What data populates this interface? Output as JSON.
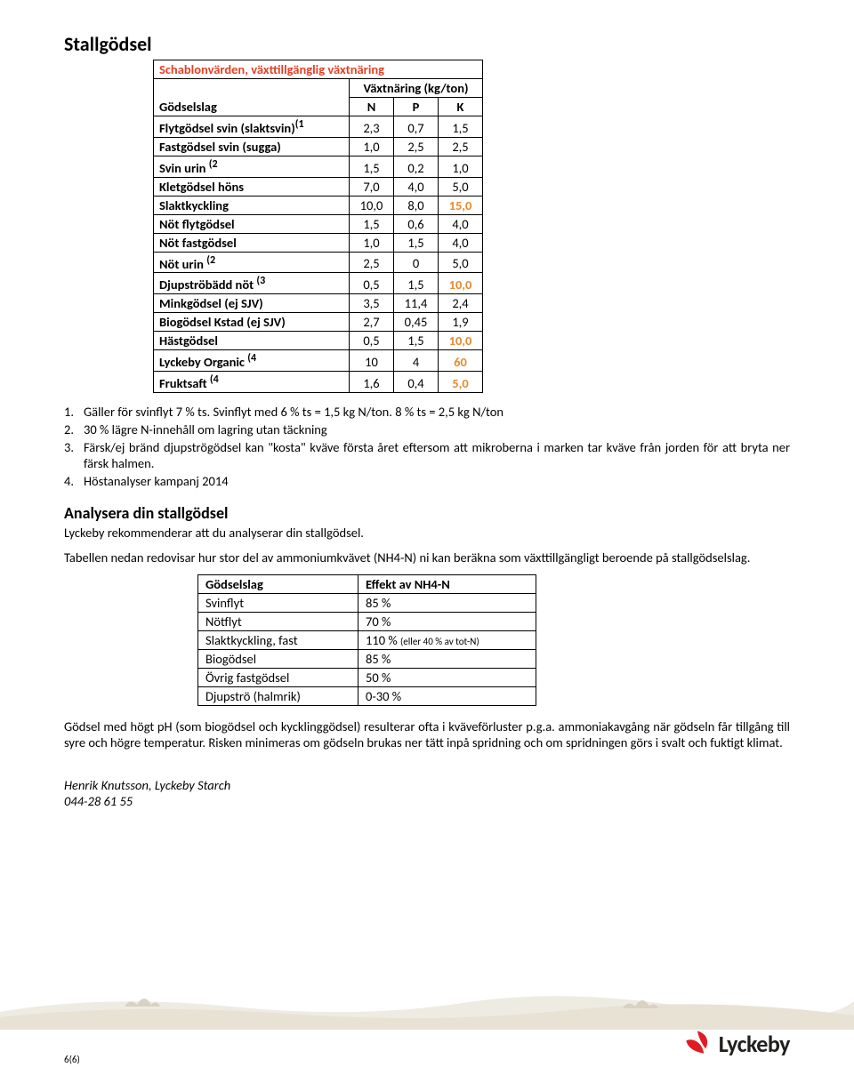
{
  "title": "Stallgödsel",
  "table1": {
    "caption": "Schablonvärden, växttillgänglig växtnäring",
    "col_label": "Gödselslag",
    "span_label": "Växtnäring (kg/ton)",
    "cols": [
      "N",
      "P",
      "K"
    ],
    "rows": [
      {
        "label": "Flytgödsel svin (slaktsvin)(1",
        "n": "2,3",
        "p": "0,7",
        "k": "1,5"
      },
      {
        "label": "Fastgödsel svin (sugga)",
        "n": "1,0",
        "p": "2,5",
        "k": "2,5"
      },
      {
        "label": "Svin urin (2",
        "n": "1,5",
        "p": "0,2",
        "k": "1,0"
      },
      {
        "label": "Kletgödsel höns",
        "n": "7,0",
        "p": "4,0",
        "k": "5,0"
      },
      {
        "label": "Slaktkyckling",
        "n": "10,0",
        "p": "8,0",
        "k": "15,0",
        "orange_k": true
      },
      {
        "label": "Nöt flytgödsel",
        "n": "1,5",
        "p": "0,6",
        "k": "4,0"
      },
      {
        "label": "Nöt fastgödsel",
        "n": "1,0",
        "p": "1,5",
        "k": "4,0"
      },
      {
        "label": "Nöt urin (2",
        "n": "2,5",
        "p": "0",
        "k": "5,0"
      },
      {
        "label": "Djupströbädd nöt (3",
        "n": "0,5",
        "p": "1,5",
        "k": "10,0",
        "orange_k": true
      },
      {
        "label": "Minkgödsel (ej SJV)",
        "n": "3,5",
        "p": "11,4",
        "k": "2,4"
      },
      {
        "label": "Biogödsel Kstad (ej SJV)",
        "n": "2,7",
        "p": "0,45",
        "k": "1,9"
      },
      {
        "label": "Hästgödsel",
        "n": "0,5",
        "p": "1,5",
        "k": "10,0",
        "orange_k": true
      },
      {
        "label": "Lyckeby Organic (4",
        "n": "10",
        "p": "4",
        "k": "60",
        "orange_k": true
      },
      {
        "label": "Fruktsaft (4",
        "n": "1,6",
        "p": "0,4",
        "k": "5,0",
        "orange_k": true
      }
    ]
  },
  "notes": [
    "Gäller för svinflyt 7 % ts. Svinflyt med 6 % ts = 1,5 kg N/ton. 8 % ts = 2,5 kg N/ton",
    "30 % lägre N-innehåll om lagring utan täckning",
    "Färsk/ej bränd djupströgödsel kan \"kosta\" kväve första året eftersom att mikroberna i marken tar kväve från jorden för att bryta ner färsk halmen.",
    "Höstanalyser kampanj 2014"
  ],
  "sub_heading": "Analysera din stallgödsel",
  "sub_text1": "Lyckeby rekommenderar att du analyserar din stallgödsel.",
  "sub_text2": "Tabellen nedan redovisar hur stor del av ammoniumkvävet (NH4-N) ni kan beräkna som växttillgängligt beroende på stallgödselslag.",
  "table2": {
    "headers": [
      "Gödselslag",
      "Effekt av NH4-N"
    ],
    "rows": [
      [
        "Svinflyt",
        "85 %",
        ""
      ],
      [
        "Nötflyt",
        "70 %",
        ""
      ],
      [
        "Slaktkyckling, fast",
        "110 % ",
        "(eller 40 % av tot-N)"
      ],
      [
        "Biogödsel",
        "85 %",
        ""
      ],
      [
        "Övrig fastgödsel",
        "50 %",
        ""
      ],
      [
        "Djupströ (halmrik)",
        "0-30 %",
        ""
      ]
    ]
  },
  "para_after": "Gödsel med högt pH (som biogödsel och kycklinggödsel) resulterar ofta i kväveförluster p.g.a. ammoniakavgång när gödseln får tillgång till syre och högre temperatur. Risken minimeras om gödseln brukas ner tätt inpå spridning och om spridningen görs i svalt och fuktigt klimat.",
  "sig_name": "Henrik Knutsson, Lyckeby Starch",
  "sig_phone": "044-28 61 55",
  "page_num": "6(6)",
  "logo_text": "Lyckeby",
  "colors": {
    "orange": "#e68a2e",
    "red": "#e74025",
    "horizon1": "#e8e2d5",
    "horizon2": "#eeebe2",
    "logo_red": "#e11b22"
  }
}
